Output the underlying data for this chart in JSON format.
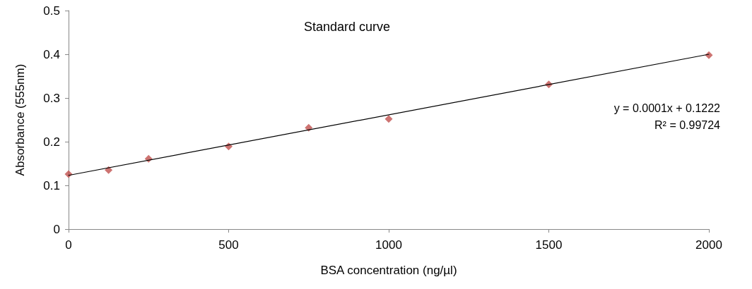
{
  "chart_data": {
    "type": "scatter",
    "title": "Standard curve",
    "xlabel": "BSA concentration (ng/µl)",
    "ylabel": "Absorbance (555nm)",
    "xlim": [
      0,
      2000
    ],
    "xticks": [
      0,
      500,
      1000,
      1500,
      2000
    ],
    "ylim": [
      0,
      0.5
    ],
    "yticks": [
      0,
      0.1,
      0.2,
      0.3,
      0.4,
      0.5
    ],
    "grid": false,
    "marker": "diamond",
    "x": [
      0,
      125,
      250,
      500,
      750,
      1000,
      1500,
      2000
    ],
    "series": [
      {
        "color": "#c0504d",
        "values": [
          0.126,
          0.135,
          0.161,
          0.189,
          0.232,
          0.252,
          0.331,
          0.398
        ]
      },
      {
        "type": "line",
        "color": "#000000",
        "x": [
          0,
          2000
        ],
        "values": [
          0.123,
          0.4
        ],
        "marker": "none",
        "line_style": "solid"
      }
    ],
    "annotations": [
      "y = 0.0001x + 0.1222",
      "R² = 0.99724"
    ]
  }
}
